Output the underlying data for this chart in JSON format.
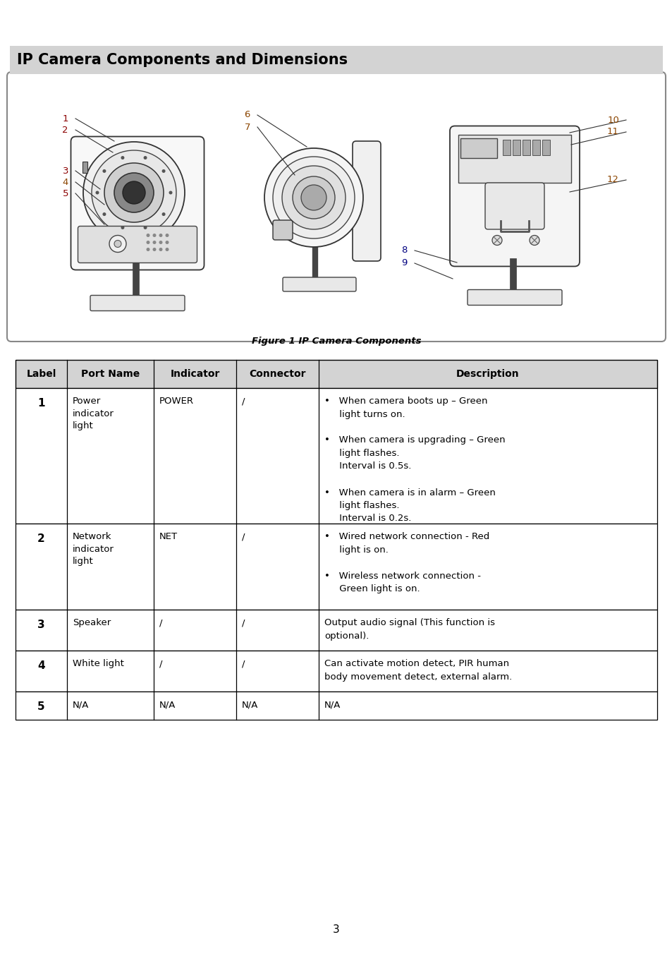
{
  "title": "IP Camera Components and Dimensions",
  "title_bg": "#d3d3d3",
  "title_fontsize": 15,
  "figure_caption": "Figure 1 IP Camera Components",
  "page_number": "3",
  "table_header": [
    "Label",
    "Port Name",
    "Indicator",
    "Connector",
    "Description"
  ],
  "table_rows": [
    {
      "label": "1",
      "port_name": "Power\nindicator\nlight",
      "indicator": "POWER",
      "connector": "/",
      "description": "•   When camera boots up – Green\n     light turns on.\n\n•   When camera is upgrading – Green\n     light flashes.\n     Interval is 0.5s.\n\n•   When camera is in alarm – Green\n     light flashes.\n     Interval is 0.2s."
    },
    {
      "label": "2",
      "port_name": "Network\nindicator\nlight",
      "indicator": "NET",
      "connector": "/",
      "description": "•   Wired network connection - Red\n     light is on.\n\n•   Wireless network connection -\n     Green light is on."
    },
    {
      "label": "3",
      "port_name": "Speaker",
      "indicator": "/",
      "connector": "/",
      "description": "Output audio signal (This function is\noptional)."
    },
    {
      "label": "4",
      "port_name": "White light",
      "indicator": "/",
      "connector": "/",
      "description": "Can activate motion detect, PIR human\nbody movement detect, external alarm."
    },
    {
      "label": "5",
      "port_name": "N/A",
      "indicator": "N/A",
      "connector": "N/A",
      "description": "N/A"
    }
  ],
  "header_bg": "#d3d3d3",
  "border_color": "#000000",
  "text_color": "#000000",
  "camera_label_colors": {
    "1": "#8B0000",
    "2": "#8B0000",
    "3": "#8B0000",
    "4": "#8B4500",
    "5": "#8B0000",
    "6": "#8B4500",
    "7": "#8B4500",
    "8": "#000080",
    "9": "#000080",
    "10": "#8B4500",
    "11": "#8B4500",
    "12": "#8B4500"
  }
}
